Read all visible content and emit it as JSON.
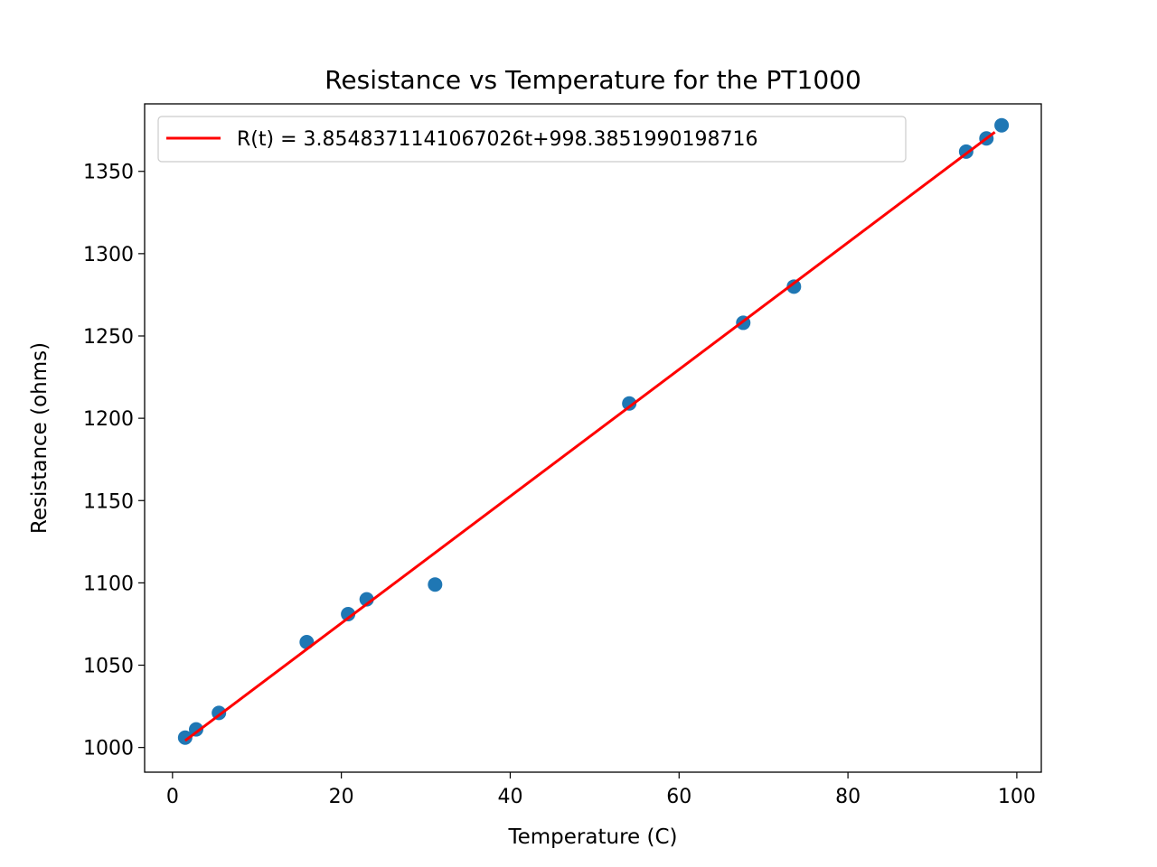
{
  "chart_data": {
    "type": "scatter",
    "title": "Resistance vs Temperature for the PT1000",
    "xlabel": "Temperature (C)",
    "ylabel": "Resistance (ohms)",
    "xlim": [
      -3.3,
      102.9
    ],
    "ylim": [
      985,
      1391
    ],
    "xticks": [
      0,
      20,
      40,
      60,
      80,
      100
    ],
    "xtick_labels": [
      "0",
      "20",
      "40",
      "60",
      "80",
      "100"
    ],
    "yticks": [
      1000,
      1050,
      1100,
      1150,
      1200,
      1250,
      1300,
      1350
    ],
    "ytick_labels": [
      "1000",
      "1050",
      "1100",
      "1150",
      "1200",
      "1250",
      "1300",
      "1350"
    ],
    "grid": false,
    "legend_position": "top-left",
    "series": [
      {
        "type": "scatter",
        "color": "#1f77b4",
        "x": [
          1.5,
          2.8,
          5.5,
          15.9,
          20.8,
          23.0,
          31.1,
          54.1,
          67.6,
          73.6,
          94.0,
          96.4,
          98.2
        ],
        "y": [
          1006,
          1011,
          1021,
          1064,
          1081,
          1090,
          1099,
          1209,
          1258,
          1280,
          1362,
          1370,
          1378
        ]
      },
      {
        "type": "line",
        "name": "R(t) = 3.8548371141067026t+998.3851990198716",
        "color": "#ff0000",
        "slope": 3.8548371141067026,
        "intercept": 998.3851990198716,
        "x": [
          1.5,
          97.4
        ]
      }
    ]
  }
}
